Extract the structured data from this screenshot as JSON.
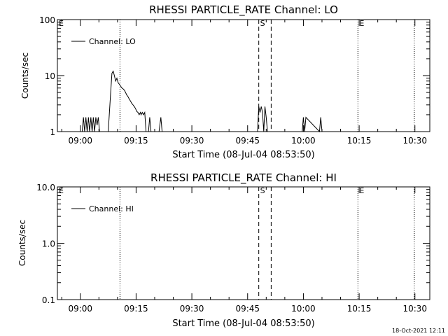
{
  "chart_data": [
    {
      "type": "line",
      "title": "RHESSI PARTICLE_RATE Channel: LO",
      "xlabel": "Start Time (08-Jul-04 08:53:50)",
      "ylabel": "Counts/sec",
      "y_scale": "log",
      "ylim": [
        1,
        100
      ],
      "xlim": [
        "08:53:50",
        "10:34:00"
      ],
      "x_ticks": [
        "09:00",
        "09:15",
        "09:30",
        "09:45",
        "10:00",
        "10:15",
        "10:30"
      ],
      "y_ticks": [
        "1",
        "10",
        "100"
      ],
      "legend": {
        "placement": "top-left",
        "entries": [
          "Channel: LO"
        ]
      },
      "markers": [
        {
          "label": "E",
          "time": "08:53:50",
          "style": "dotted"
        },
        {
          "label": "",
          "time": "09:10:40",
          "style": "dotted"
        },
        {
          "label": "S",
          "time": "09:48:00",
          "style": "dashed"
        },
        {
          "label": "",
          "time": "09:51:20",
          "style": "dashed"
        },
        {
          "label": "E",
          "time": "10:14:40",
          "style": "dotted"
        },
        {
          "label": "",
          "time": "10:29:50",
          "style": "dotted"
        }
      ],
      "series": [
        {
          "name": "Channel: LO",
          "x": [
            "09:00:30",
            "09:00:50",
            "09:01:10",
            "09:01:30",
            "09:01:50",
            "09:02:10",
            "09:02:30",
            "09:02:50",
            "09:03:10",
            "09:03:30",
            "09:03:50",
            "09:04:10",
            "09:04:30",
            "09:04:50",
            "09:05:10",
            "09:07:30",
            "09:08:10",
            "09:08:30",
            "09:08:50",
            "09:09:10",
            "09:09:30",
            "09:09:50",
            "09:10:10",
            "09:10:30",
            "09:10:50",
            "09:11:10",
            "09:11:30",
            "09:11:50",
            "09:12:10",
            "09:12:30",
            "09:12:50",
            "09:13:10",
            "09:13:30",
            "09:13:50",
            "09:14:10",
            "09:14:30",
            "09:14:50",
            "09:15:10",
            "09:15:30",
            "09:15:50",
            "09:16:10",
            "09:16:20",
            "09:16:40",
            "09:17:00",
            "09:17:20",
            "09:17:40",
            "09:18:20",
            "09:18:40",
            "09:19:00",
            "09:21:10",
            "09:21:40",
            "09:22:00",
            "09:47:40",
            "09:48:00",
            "09:48:20",
            "09:48:40",
            "09:49:00",
            "09:49:20",
            "09:49:40",
            "09:50:00",
            "09:50:20",
            "09:59:40",
            "10:00:00",
            "10:00:20",
            "10:00:40",
            "10:04:20",
            "10:04:40",
            "10:05:00"
          ],
          "y": [
            1,
            1.8,
            1,
            1.8,
            1,
            1.8,
            1,
            1.8,
            1,
            1.8,
            1,
            1.8,
            1.3,
            1.8,
            1,
            1,
            5,
            11,
            12,
            10,
            8,
            9,
            7.5,
            7,
            6.5,
            6,
            5.8,
            5.5,
            5,
            4.5,
            4.2,
            3.8,
            3.5,
            3.2,
            3,
            2.8,
            2.6,
            2.3,
            2.2,
            2,
            2.2,
            2,
            2.2,
            2,
            2.2,
            1,
            1,
            1.8,
            1,
            1,
            1.8,
            1,
            1,
            2.8,
            2.2,
            2.8,
            2.2,
            1,
            2.8,
            1.8,
            1,
            1,
            1.8,
            1,
            1.8,
            1,
            1.8,
            1
          ]
        }
      ]
    },
    {
      "type": "line",
      "title": "RHESSI PARTICLE_RATE Channel: HI",
      "xlabel": "Start Time (08-Jul-04 08:53:50)",
      "ylabel": "Counts/sec",
      "y_scale": "log",
      "ylim": [
        0.1,
        10.0
      ],
      "xlim": [
        "08:53:50",
        "10:34:00"
      ],
      "x_ticks": [
        "09:00",
        "09:15",
        "09:30",
        "09:45",
        "10:00",
        "10:15",
        "10:30"
      ],
      "y_ticks": [
        "0.1",
        "1.0",
        "10.0"
      ],
      "legend": {
        "placement": "top-left",
        "entries": [
          "Channel: HI"
        ]
      },
      "markers": [
        {
          "label": "E",
          "time": "08:53:50",
          "style": "dotted"
        },
        {
          "label": "",
          "time": "09:10:40",
          "style": "dotted"
        },
        {
          "label": "S",
          "time": "09:48:00",
          "style": "dashed"
        },
        {
          "label": "",
          "time": "09:51:20",
          "style": "dashed"
        },
        {
          "label": "E",
          "time": "10:14:40",
          "style": "dotted"
        },
        {
          "label": "",
          "time": "10:29:50",
          "style": "dotted"
        }
      ],
      "series": [
        {
          "name": "Channel: HI",
          "x": [],
          "y": []
        }
      ]
    }
  ],
  "footer": {
    "timestamp": "18-Oct-2021 12:11"
  }
}
